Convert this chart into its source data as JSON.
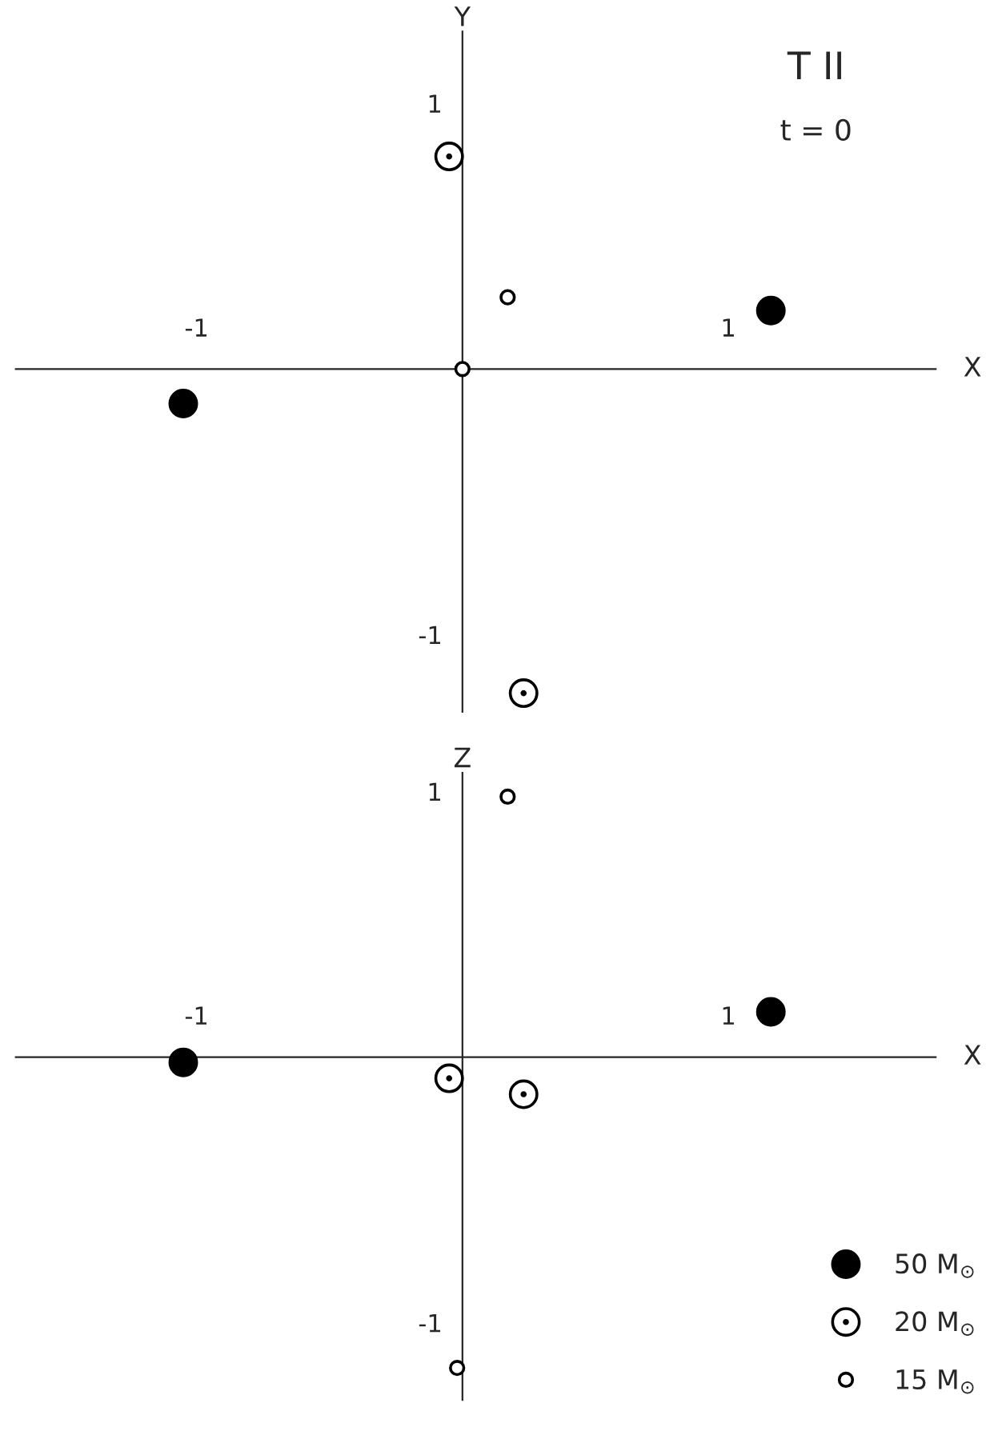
{
  "chart_data": [
    {
      "type": "scatter",
      "title": "T II",
      "subtitle": "t = 0",
      "xlabel": "X",
      "ylabel": "Y",
      "xlim": [
        -1.68,
        1.78
      ],
      "ylim": [
        -1.29,
        1.27
      ],
      "xticks": [
        {
          "value": -1,
          "label": "-1"
        },
        1
      ],
      "yticks": [
        {
          "value": -1,
          "label": "-1"
        },
        1
      ],
      "grid": false,
      "legend": false,
      "marker": "circle",
      "series": [
        {
          "color": "#000000",
          "x": [
            -1.05,
            1.16
          ],
          "values": [
            -0.13,
            0.22
          ]
        },
        {
          "color": "#000000",
          "x": [
            -0.05,
            0.23
          ],
          "values": [
            0.8,
            -1.22
          ]
        },
        {
          "color": "#000000",
          "x": [
            0.17,
            0.0
          ],
          "values": [
            0.27,
            0.0
          ]
        }
      ]
    },
    {
      "type": "scatter",
      "xlabel": "X",
      "ylabel": "Z",
      "xlim": [
        -1.68,
        1.78
      ],
      "ylim": [
        -1.29,
        1.07
      ],
      "xticks": [
        {
          "value": -1,
          "label": "-1"
        },
        1
      ],
      "yticks": [
        {
          "value": -1,
          "label": "-1"
        },
        1
      ],
      "grid": false,
      "legend": "bottom right",
      "marker": "circle",
      "series": [
        {
          "name": "50 M$_{⊙}$",
          "color": "#000000",
          "x": [
            -1.05,
            1.16
          ],
          "values": [
            -0.02,
            0.17
          ]
        },
        {
          "name": "20 M$_{⊙}$",
          "color": "#000000",
          "x": [
            -0.05,
            0.23
          ],
          "values": [
            -0.08,
            -0.14
          ]
        },
        {
          "name": "15 M$_{⊙}$",
          "color": "#000000",
          "x": [
            0.17,
            -0.02
          ],
          "values": [
            0.98,
            -1.17
          ]
        }
      ]
    }
  ]
}
